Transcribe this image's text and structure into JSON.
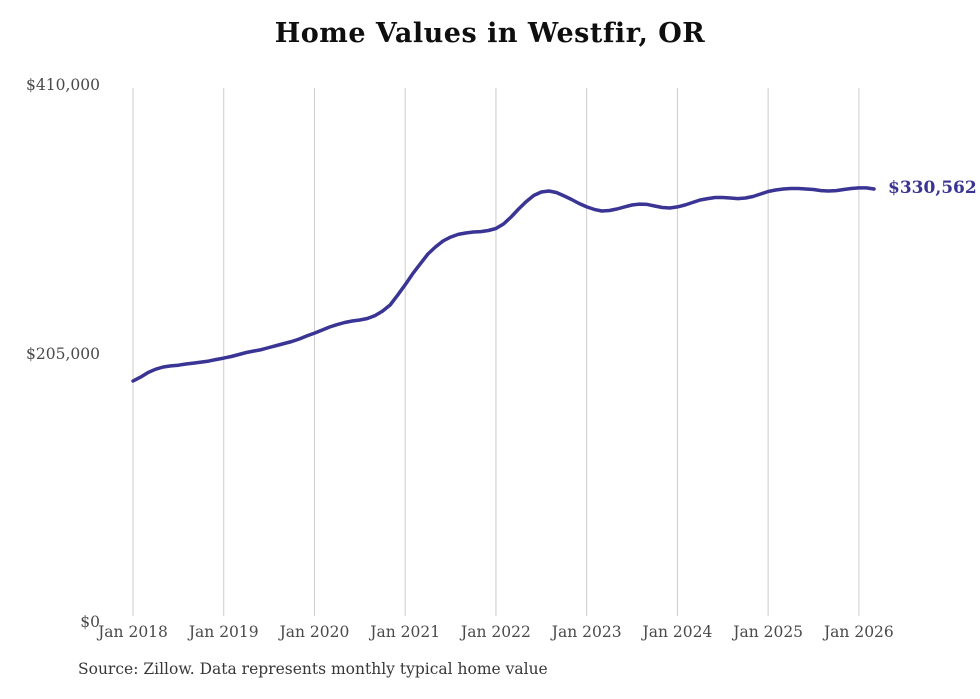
{
  "title": "Home Values in Westfir, OR",
  "source_note": "Source: Zillow. Data represents monthly typical home value",
  "colors": {
    "background": "#ffffff",
    "line": "#3a3494",
    "grid": "#cccccc",
    "axis_text": "#4a4a4a",
    "title_text": "#0f0f0f",
    "source_text": "#383838",
    "latest_label": "#3a3494"
  },
  "chart_data": {
    "type": "line",
    "title": "Home Values in Westfir, OR",
    "series_name": "Monthly typical home value",
    "x_monthly_from": "2018-01",
    "x_monthly_to": "2026-03",
    "x_tick_labels": [
      "Jan 2018",
      "Jan 2019",
      "Jan 2020",
      "Jan 2021",
      "Jan 2022",
      "Jan 2023",
      "Jan 2024",
      "Jan 2025",
      "Jan 2026"
    ],
    "y_ticks": [
      {
        "label": "$410,000",
        "value": 410000
      },
      {
        "label": "$205,000",
        "value": 205000
      },
      {
        "label": "$0",
        "value": 0
      }
    ],
    "ylim": [
      0,
      410000
    ],
    "grid": "vertical-only",
    "legend": "none",
    "latest_value": 330562,
    "latest_label": "$330,562",
    "values": [
      184000,
      187000,
      190500,
      193000,
      194700,
      195500,
      196100,
      197000,
      197700,
      198400,
      199200,
      200400,
      201500,
      202700,
      204200,
      205800,
      206900,
      208000,
      209600,
      211100,
      212600,
      214200,
      216100,
      218400,
      220600,
      222900,
      225200,
      227100,
      228700,
      229800,
      230600,
      231700,
      233900,
      237400,
      242000,
      249500,
      257500,
      266000,
      273500,
      281000,
      286300,
      290900,
      293900,
      295900,
      297000,
      297800,
      298100,
      298900,
      300400,
      303900,
      309200,
      315300,
      321000,
      325600,
      328300,
      329100,
      327900,
      325300,
      322600,
      319500,
      316900,
      315000,
      313800,
      314200,
      315300,
      316900,
      318400,
      319100,
      318800,
      317600,
      316500,
      316100,
      316900,
      318400,
      320300,
      322200,
      323300,
      324100,
      324100,
      323700,
      323300,
      323700,
      324900,
      326800,
      328700,
      329800,
      330600,
      331000,
      331000,
      330600,
      330200,
      329400,
      329100,
      329400,
      330200,
      331000,
      331400,
      331400,
      330562
    ]
  }
}
